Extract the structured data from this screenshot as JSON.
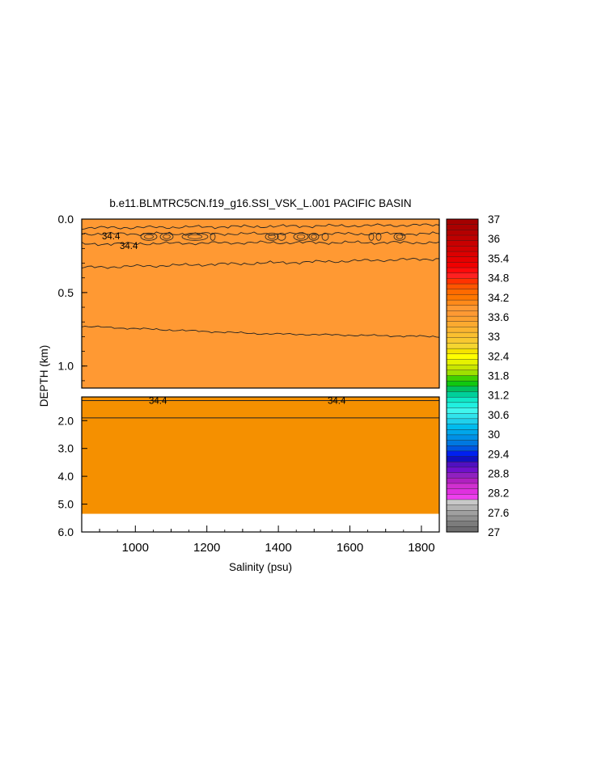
{
  "chart_data": {
    "type": "heatmap",
    "title": "b.e11.BLMTRC5CN.f19_g16.SSI_VSK_L.001 PACIFIC BASIN",
    "xlabel": "Salinity (psu)",
    "ylabel": "DEPTH (km)",
    "xlim": [
      850,
      1850
    ],
    "x_ticks": [
      1000,
      1200,
      1400,
      1600,
      1800
    ],
    "panels": [
      {
        "name": "upper",
        "ylim": [
          0.0,
          1.15
        ],
        "y_ticks": [
          0.0,
          0.5,
          1.0
        ],
        "y_tick_labels": [
          "0.0",
          "0.5",
          "1.0"
        ],
        "fill_color": "#ff9933",
        "contours": [
          {
            "depths": [
              0.06,
              0.05,
              0.04
            ]
          },
          {
            "level": "34.4",
            "depths": [
              0.1,
              0.1,
              0.1
            ]
          },
          {
            "level": "34.4",
            "depths": [
              0.17,
              0.16,
              0.16
            ]
          },
          {
            "depths": [
              0.33,
              0.3,
              0.27
            ]
          },
          {
            "depths": [
              0.73,
              0.78,
              0.8
            ]
          }
        ]
      },
      {
        "name": "lower",
        "ylim": [
          1.15,
          6.0
        ],
        "y_ticks": [
          2.0,
          3.0,
          4.0,
          5.0,
          6.0
        ],
        "y_tick_labels": [
          "2.0",
          "3.0",
          "4.0",
          "5.0",
          "6.0"
        ],
        "fill_color": "#f59000",
        "data_bottom": 5.35,
        "contours": [
          {
            "level": "34.4",
            "depth": 1.28
          },
          {
            "depth": 1.9
          }
        ],
        "contour_labels": [
          {
            "text": "34.4",
            "x": 1065
          },
          {
            "text": "34.4",
            "x": 1565
          }
        ]
      }
    ],
    "colorbar": {
      "range": [
        27,
        37
      ],
      "labels": [
        "37",
        "36",
        "35.4",
        "34.8",
        "34.2",
        "33.6",
        "33",
        "32.4",
        "31.8",
        "31.2",
        "30.6",
        "30",
        "29.4",
        "28.8",
        "28.2",
        "27.6",
        "27"
      ],
      "colors": [
        "#a50000",
        "#aa0000",
        "#b40000",
        "#bf0000",
        "#c80000",
        "#d20000",
        "#dc0000",
        "#e60000",
        "#f00000",
        "#ff0a0a",
        "#ff2020",
        "#ff3300",
        "#ff5500",
        "#ff6a00",
        "#ff7700",
        "#ff8a1a",
        "#ff9933",
        "#ff9933",
        "#fca030",
        "#fbaa30",
        "#fbb430",
        "#fbbf30",
        "#f8c830",
        "#f5d530",
        "#f5e200",
        "#ffff00",
        "#e6f200",
        "#c8e600",
        "#a0e000",
        "#40d000",
        "#10c810",
        "#00c060",
        "#00d09a",
        "#10e8c8",
        "#20f0e0",
        "#40f6ee",
        "#30e4ec",
        "#20d0ec",
        "#00bbee",
        "#00a6ea",
        "#0090e6",
        "#0078e0",
        "#0056e0",
        "#0020f0",
        "#1010c0",
        "#5010c0",
        "#7010cc",
        "#9020c0",
        "#b020c0",
        "#d030d0",
        "#e030e0",
        "#ee40ee",
        "#c8c8c8",
        "#b4b4b4",
        "#a0a0a0",
        "#909090",
        "#7c7c7c",
        "#6e6e6e"
      ]
    }
  }
}
